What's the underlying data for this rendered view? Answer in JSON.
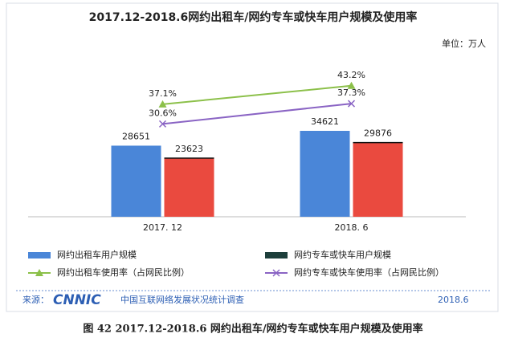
{
  "chart_data": {
    "type": "bar",
    "title": "2017.12-2018.6网约出租车/网约专车或快车用户规模及使用率",
    "unit": "单位：万人",
    "categories": [
      "2017. 12",
      "2018. 6"
    ],
    "ylim": [
      0,
      55000
    ],
    "y2lim": [
      0,
      45
    ],
    "series": [
      {
        "name": "网约出租车用户规模",
        "type": "bar",
        "color": "#4a86d8",
        "values": [
          28651,
          34621
        ]
      },
      {
        "name": "网约专车或快车用户规模",
        "type": "bar",
        "color": "#ea4a3f",
        "legend_color": "#1d3f3b",
        "values": [
          23623,
          29876
        ]
      },
      {
        "name": "网约出租车使用率（占网民比例）",
        "type": "line",
        "axis": "y2",
        "marker": "triangle",
        "color": "#8cc04a",
        "values": [
          37.1,
          43.2
        ],
        "value_labels": [
          "37.1%",
          "43.2%"
        ]
      },
      {
        "name": "网约专车或快车使用率（占网民比例）",
        "type": "line",
        "axis": "y2",
        "marker": "x",
        "color": "#8a64c4",
        "values": [
          30.6,
          37.3
        ],
        "value_labels": [
          "30.6%",
          "37.3%"
        ]
      }
    ]
  },
  "source": {
    "label": "来源：",
    "logo": "CNNIC",
    "text": "中国互联网络发展状况统计调查",
    "date": "2018.6"
  },
  "caption": "图 42    2017.12-2018.6 网约出租车/网约专车或快车用户规模及使用率"
}
